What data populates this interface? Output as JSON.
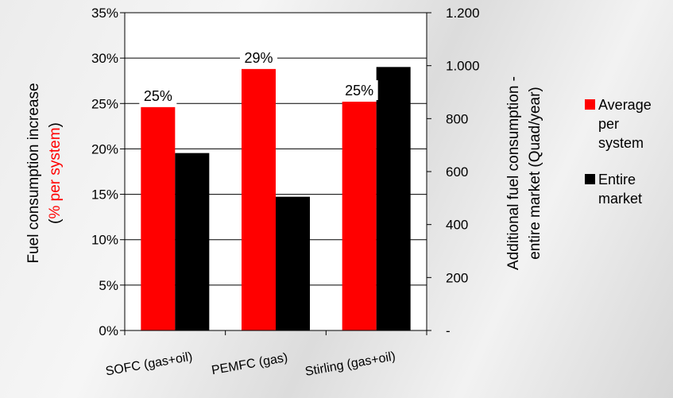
{
  "chart_data": {
    "type": "bar",
    "categories": [
      "SOFC (gas+oil)",
      "PEMFC (gas)",
      "Stirling (gas+oil)"
    ],
    "series": [
      {
        "name": "Average per system",
        "axis": "left",
        "color": "#ff0000",
        "values": [
          0.246,
          0.288,
          0.252
        ],
        "data_labels": [
          "25%",
          "29%",
          "25%"
        ]
      },
      {
        "name": "Entire market",
        "axis": "right",
        "color": "#000000",
        "values": [
          670,
          505,
          995
        ]
      }
    ],
    "y_left": {
      "title_line1": "Fuel consumption increase",
      "title_line2_open": "(",
      "title_line2_red": "% per system",
      "title_line2_close": ")",
      "title_red_color": "#ff0000",
      "ylim": [
        0,
        0.35
      ],
      "ticks": [
        0,
        0.05,
        0.1,
        0.15,
        0.2,
        0.25,
        0.3,
        0.35
      ],
      "tick_labels": [
        "0%",
        "5%",
        "10%",
        "15%",
        "20%",
        "25%",
        "30%",
        "35%"
      ]
    },
    "y_right": {
      "title_line1": "Additional fuel consumption -",
      "title_line2": "entire market (Quad/year)",
      "ylim": [
        0,
        1200
      ],
      "ticks": [
        0,
        200,
        400,
        600,
        800,
        1000,
        1200
      ],
      "tick_labels": [
        "-",
        "200",
        "400",
        "600",
        "800",
        "1.000",
        "1.200"
      ]
    },
    "grid": "horizontal",
    "legend": {
      "position": "right",
      "items": [
        {
          "lines": [
            "Average",
            "per",
            "system"
          ],
          "color": "#ff0000"
        },
        {
          "lines": [
            "Entire",
            "market"
          ],
          "color": "#000000"
        }
      ]
    }
  }
}
